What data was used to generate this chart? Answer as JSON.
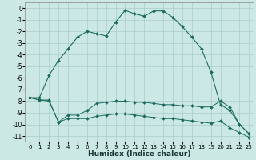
{
  "xlabel": "Humidex (Indice chaleur)",
  "background_color": "#cce8e4",
  "grid_color": "#aacccc",
  "line_color": "#1a6b5e",
  "xlim": [
    -0.5,
    23.5
  ],
  "ylim": [
    -11.5,
    0.5
  ],
  "yticks": [
    0,
    -1,
    -2,
    -3,
    -4,
    -5,
    -6,
    -7,
    -8,
    -9,
    -10,
    -11
  ],
  "xticks": [
    0,
    1,
    2,
    3,
    4,
    5,
    6,
    7,
    8,
    9,
    10,
    11,
    12,
    13,
    14,
    15,
    16,
    17,
    18,
    19,
    20,
    21,
    22,
    23
  ],
  "curve1_x": [
    0,
    1,
    2,
    3,
    4,
    5,
    6,
    7,
    8,
    9,
    10,
    11,
    12,
    13,
    14,
    15,
    16,
    17,
    18,
    19,
    20,
    21,
    22,
    23
  ],
  "curve1_y": [
    -7.7,
    -7.7,
    -5.8,
    -4.5,
    -3.5,
    -2.5,
    -2.0,
    -2.2,
    -2.4,
    -1.2,
    -0.2,
    -0.5,
    -0.7,
    -0.25,
    -0.25,
    -0.8,
    -1.6,
    -2.5,
    -3.5,
    -5.5,
    -8.3,
    -8.8,
    -10.0,
    -10.8
  ],
  "curve2_x": [
    0,
    1,
    2,
    3,
    4,
    5,
    6,
    7,
    8,
    9,
    10,
    11,
    12,
    13,
    14,
    15,
    16,
    17,
    18,
    19,
    20,
    21,
    22,
    23
  ],
  "curve2_y": [
    -7.7,
    -7.9,
    -7.9,
    -9.8,
    -9.2,
    -9.2,
    -8.8,
    -8.2,
    -8.1,
    -8.0,
    -8.0,
    -8.1,
    -8.1,
    -8.2,
    -8.3,
    -8.3,
    -8.4,
    -8.4,
    -8.5,
    -8.5,
    -8.0,
    -8.5,
    -10.0,
    -10.8
  ],
  "curve3_x": [
    0,
    1,
    2,
    3,
    4,
    5,
    6,
    7,
    8,
    9,
    10,
    11,
    12,
    13,
    14,
    15,
    16,
    17,
    18,
    19,
    20,
    21,
    22,
    23
  ],
  "curve3_y": [
    -7.7,
    -7.9,
    -8.0,
    -9.8,
    -9.5,
    -9.5,
    -9.5,
    -9.3,
    -9.2,
    -9.1,
    -9.1,
    -9.2,
    -9.3,
    -9.4,
    -9.5,
    -9.5,
    -9.6,
    -9.7,
    -9.8,
    -9.9,
    -9.7,
    -10.3,
    -10.7,
    -11.1
  ]
}
